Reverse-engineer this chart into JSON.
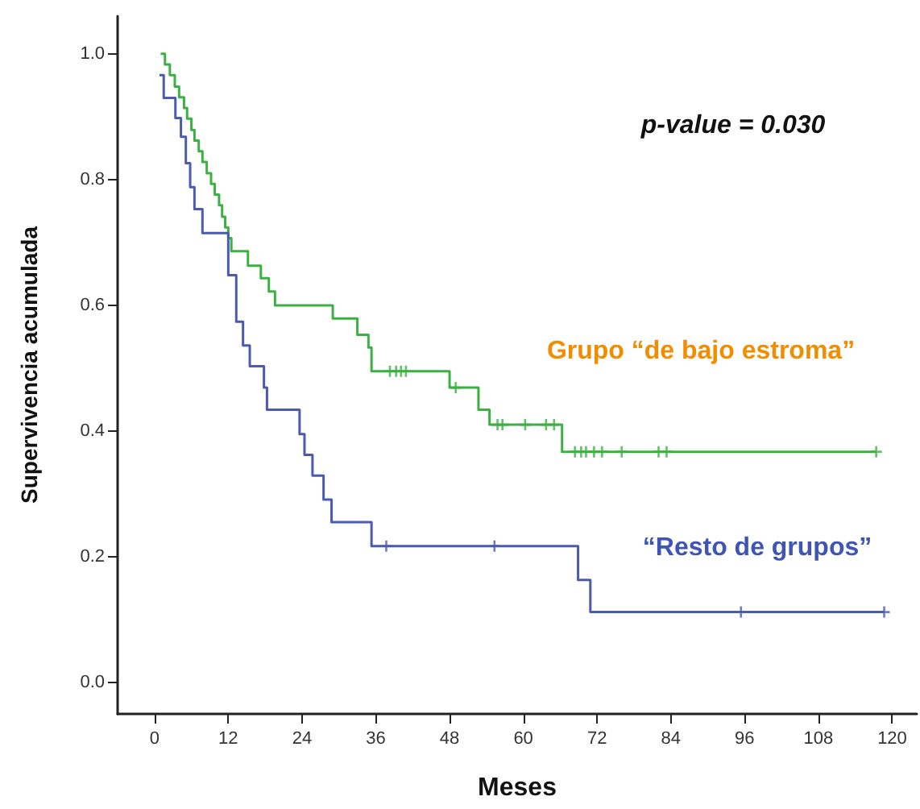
{
  "chart_data": {
    "type": "step",
    "xlabel": "Meses",
    "ylabel": "Supervivencia acumulada",
    "xlim": [
      -6,
      124
    ],
    "xticks": [
      0,
      12,
      24,
      36,
      48,
      60,
      72,
      84,
      96,
      108,
      120
    ],
    "ylim": [
      -0.05,
      1.06
    ],
    "yticks": [
      {
        "value": 0,
        "label": "0.0"
      },
      {
        "value": 0.2,
        "label": "0.2"
      },
      {
        "value": 0.4,
        "label": "0.4"
      },
      {
        "value": 0.6,
        "label": "0.6"
      },
      {
        "value": 0.8,
        "label": "0.8"
      },
      {
        "value": 1,
        "label": "1.0"
      }
    ],
    "grid": false,
    "marker": "none",
    "line_style": "solid",
    "series": [
      {
        "color": "#3cb043",
        "x": [
          1.0,
          1.7,
          2.5,
          3.3,
          4.0,
          4.8,
          5.3,
          6.0,
          6.5,
          7.2,
          7.8,
          8.5,
          9.2,
          9.8,
          10.5,
          11.0,
          11.5,
          12.0,
          12.5,
          15.2,
          17.3,
          18.6,
          19.6,
          28.3,
          29.0,
          33.0,
          34.8,
          35.3,
          48.0,
          52.7,
          54.5,
          66.3,
          117.4
        ],
        "values": [
          1.0,
          0.983,
          0.966,
          0.948,
          0.931,
          0.914,
          0.897,
          0.879,
          0.862,
          0.845,
          0.828,
          0.81,
          0.793,
          0.776,
          0.759,
          0.741,
          0.724,
          0.707,
          0.686,
          0.663,
          0.643,
          0.622,
          0.6,
          0.6,
          0.579,
          0.553,
          0.533,
          0.495,
          0.469,
          0.434,
          0.41,
          0.367,
          0.367
        ]
      },
      {
        "color": "#4a5bb0",
        "x": [
          0.8,
          1.5,
          3.4,
          4.3,
          5.1,
          5.8,
          6.5,
          7.8,
          12.0,
          13.3,
          14.4,
          15.5,
          17.8,
          18.3,
          23.6,
          24.4,
          25.7,
          27.5,
          28.8,
          35.3,
          68.9,
          70.9,
          118.7
        ],
        "values": [
          0.966,
          0.93,
          0.898,
          0.868,
          0.826,
          0.788,
          0.753,
          0.715,
          0.648,
          0.574,
          0.536,
          0.503,
          0.469,
          0.434,
          0.395,
          0.362,
          0.329,
          0.291,
          0.255,
          0.217,
          0.163,
          0.112,
          0.112
        ]
      },
      {
        "type": "scatter",
        "marker": "cross",
        "color": "#3cb043",
        "x": [
          38.3,
          39.3,
          40.1,
          40.9,
          49.0,
          55.8,
          56.6,
          60.3,
          63.7,
          65.0,
          68.4,
          69.4,
          70.2,
          71.5,
          72.8,
          76.0,
          82.0,
          83.3,
          117.4
        ],
        "values": [
          0.495,
          0.495,
          0.495,
          0.495,
          0.469,
          0.41,
          0.41,
          0.41,
          0.41,
          0.41,
          0.367,
          0.367,
          0.367,
          0.367,
          0.367,
          0.367,
          0.367,
          0.367,
          0.367
        ]
      },
      {
        "type": "scatter",
        "marker": "cross",
        "color": "#4a5bb0",
        "x": [
          37.7,
          55.3,
          95.4,
          118.7
        ],
        "values": [
          0.217,
          0.217,
          0.112,
          0.112
        ]
      }
    ],
    "annotations": [
      "p-value = 0.030",
      "Grupo “de bajo estroma”",
      "“Resto de grupos”"
    ]
  }
}
